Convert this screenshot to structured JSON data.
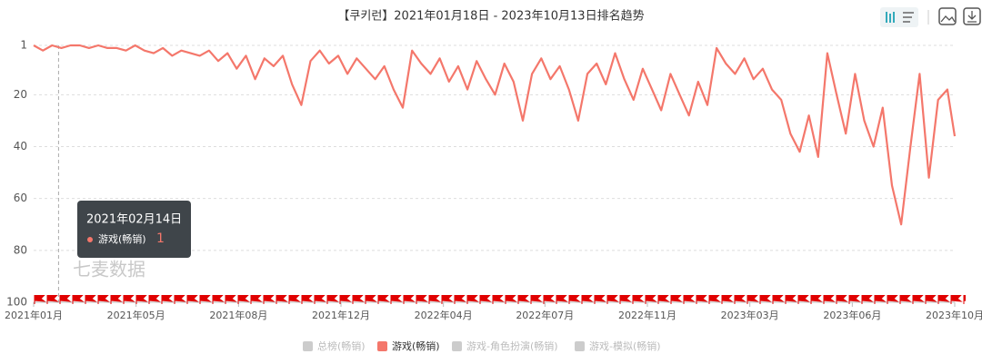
{
  "chart_data": {
    "type": "line",
    "title": "【쿠키런】2021年01月18日 - 2023年10月13日排名趋势",
    "watermark": "七麦数据",
    "x": [
      "2021-01-18",
      "2021-01-28",
      "2021-02-07",
      "2021-02-17",
      "2021-02-27",
      "2021-03-09",
      "2021-03-19",
      "2021-03-29",
      "2021-04-08",
      "2021-04-18",
      "2021-04-28",
      "2021-05-08",
      "2021-05-18",
      "2021-05-28",
      "2021-06-07",
      "2021-06-17",
      "2021-06-27",
      "2021-07-07",
      "2021-07-17",
      "2021-07-27",
      "2021-08-06",
      "2021-08-16",
      "2021-08-26",
      "2021-09-05",
      "2021-09-15",
      "2021-09-25",
      "2021-10-05",
      "2021-10-15",
      "2021-10-25",
      "2021-11-04",
      "2021-11-14",
      "2021-11-24",
      "2021-12-04",
      "2021-12-14",
      "2021-12-24",
      "2022-01-03",
      "2022-01-13",
      "2022-01-23",
      "2022-02-02",
      "2022-02-12",
      "2022-02-22",
      "2022-03-04",
      "2022-03-14",
      "2022-03-24",
      "2022-04-03",
      "2022-04-13",
      "2022-04-23",
      "2022-05-03",
      "2022-05-13",
      "2022-05-23",
      "2022-06-02",
      "2022-06-12",
      "2022-06-22",
      "2022-07-02",
      "2022-07-12",
      "2022-07-22",
      "2022-08-01",
      "2022-08-11",
      "2022-08-21",
      "2022-08-31",
      "2022-09-10",
      "2022-09-20",
      "2022-09-30",
      "2022-10-10",
      "2022-10-20",
      "2022-10-30",
      "2022-11-09",
      "2022-11-19",
      "2022-11-29",
      "2022-12-09",
      "2022-12-19",
      "2022-12-29",
      "2023-01-08",
      "2023-01-18",
      "2023-01-28",
      "2023-02-07",
      "2023-02-17",
      "2023-02-27",
      "2023-03-09",
      "2023-03-19",
      "2023-03-29",
      "2023-04-08",
      "2023-04-18",
      "2023-04-28",
      "2023-05-08",
      "2023-05-18",
      "2023-05-28",
      "2023-06-07",
      "2023-06-17",
      "2023-06-27",
      "2023-07-07",
      "2023-07-17",
      "2023-07-27",
      "2023-08-06",
      "2023-08-16",
      "2023-08-26",
      "2023-09-05",
      "2023-09-15",
      "2023-09-25",
      "2023-10-05",
      "2023-10-13"
    ],
    "series": [
      {
        "name": "总榜(畅销)",
        "color": "#cccccc",
        "visible": false
      },
      {
        "name": "游戏(畅销)",
        "color": "#f4776b",
        "visible": true,
        "values": [
          1,
          3,
          1,
          2,
          1,
          1,
          2,
          1,
          2,
          2,
          3,
          1,
          3,
          4,
          2,
          5,
          3,
          4,
          5,
          3,
          7,
          4,
          10,
          5,
          14,
          6,
          9,
          5,
          16,
          24,
          7,
          3,
          8,
          5,
          12,
          6,
          10,
          14,
          9,
          18,
          25,
          3,
          8,
          12,
          6,
          15,
          9,
          18,
          7,
          14,
          20,
          8,
          15,
          30,
          12,
          6,
          14,
          9,
          18,
          30,
          12,
          8,
          16,
          4,
          14,
          22,
          10,
          18,
          26,
          12,
          20,
          28,
          15,
          24,
          2,
          8,
          12,
          6,
          14,
          10,
          18,
          22,
          35,
          42,
          28,
          44,
          4,
          20,
          35,
          12,
          30,
          40,
          25,
          55,
          70,
          40,
          12,
          52,
          22,
          18,
          36
        ]
      },
      {
        "name": "游戏-角色扮演(畅销)",
        "color": "#cccccc",
        "visible": false
      },
      {
        "name": "游戏-模拟(畅销)",
        "color": "#cccccc",
        "visible": false
      }
    ],
    "xlim": [
      "2021-01-18",
      "2023-10-13"
    ],
    "xticks": [
      {
        "value": "2021-01-18",
        "label": "2021年01月"
      },
      {
        "value": "2021-05-09",
        "label": "2021年05月"
      },
      {
        "value": "2021-08-28",
        "label": "2021年08月"
      },
      {
        "value": "2021-12-17",
        "label": "2021年12月"
      },
      {
        "value": "2022-04-07",
        "label": "2022年04月"
      },
      {
        "value": "2022-07-26",
        "label": "2022年07月"
      },
      {
        "value": "2022-11-14",
        "label": "2022年11月"
      },
      {
        "value": "2023-03-05",
        "label": "2023年03月"
      },
      {
        "value": "2023-06-24",
        "label": "2023年06月"
      },
      {
        "value": "2023-10-13",
        "label": "2023年10月"
      }
    ],
    "ylim": [
      1,
      100
    ],
    "y_inverted": true,
    "yticks": [
      1,
      20,
      40,
      60,
      80,
      100
    ],
    "grid": true,
    "tooltip": {
      "x": "2021-02-14",
      "label": "2021年02月14日",
      "series": 1,
      "value": 1
    }
  }
}
